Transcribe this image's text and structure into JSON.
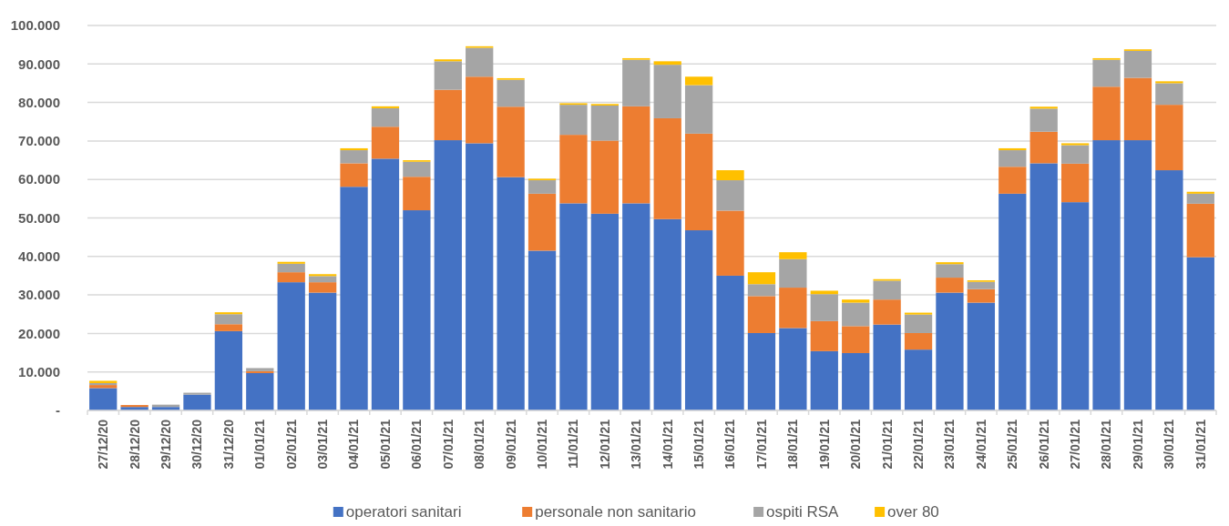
{
  "chart_data": {
    "type": "bar",
    "stacked": true,
    "categories": [
      "27/12/20",
      "28/12/20",
      "29/12/20",
      "30/12/20",
      "31/12/20",
      "01/01/21",
      "02/01/21",
      "03/01/21",
      "04/01/21",
      "05/01/21",
      "06/01/21",
      "07/01/21",
      "08/01/21",
      "09/01/21",
      "10/01/21",
      "11/01/21",
      "12/01/21",
      "13/01/21",
      "14/01/21",
      "15/01/21",
      "16/01/21",
      "17/01/21",
      "18/01/21",
      "19/01/21",
      "20/01/21",
      "21/01/21",
      "22/01/21",
      "23/01/21",
      "24/01/21",
      "25/01/21",
      "26/01/21",
      "27/01/21",
      "28/01/21",
      "29/01/21",
      "30/01/21",
      "31/01/21"
    ],
    "series": [
      {
        "name": "operatori sanitari",
        "color": "#4472c4",
        "values": [
          5800,
          900,
          900,
          4100,
          20600,
          9700,
          33300,
          30600,
          58100,
          65400,
          52000,
          70200,
          69400,
          60600,
          41500,
          53800,
          51100,
          53800,
          49700,
          46800,
          35000,
          20100,
          21400,
          15400,
          14900,
          22300,
          15800,
          30600,
          28000,
          56300,
          64200,
          54100,
          70200,
          70200,
          62400,
          39800
        ]
      },
      {
        "name": "personale non sanitario",
        "color": "#ed7d31",
        "values": [
          800,
          500,
          null,
          0,
          1800,
          500,
          2600,
          2700,
          6100,
          8300,
          8700,
          13100,
          17300,
          18300,
          14800,
          17800,
          19000,
          25200,
          26200,
          25100,
          16900,
          9600,
          10500,
          7800,
          7000,
          6500,
          4300,
          3900,
          3500,
          7000,
          8200,
          10000,
          13900,
          16200,
          17000,
          13900
        ]
      },
      {
        "name": "ospiti RSA",
        "color": "#a5a5a5",
        "values": [
          500,
          null,
          600,
          500,
          2600,
          800,
          2200,
          1600,
          3400,
          4800,
          3900,
          7400,
          7500,
          7000,
          3500,
          7800,
          9100,
          12100,
          13900,
          12600,
          7900,
          3100,
          7400,
          7000,
          6100,
          4900,
          4800,
          3500,
          1900,
          4300,
          6000,
          4800,
          7000,
          7000,
          5600,
          2600
        ]
      },
      {
        "name": "over 80",
        "color": "#ffc000",
        "values": [
          600,
          0,
          0,
          0,
          500,
          null,
          500,
          500,
          500,
          500,
          400,
          500,
          400,
          400,
          400,
          400,
          400,
          400,
          900,
          2200,
          2600,
          3100,
          1800,
          900,
          800,
          400,
          500,
          500,
          400,
          500,
          500,
          500,
          400,
          400,
          500,
          500
        ]
      }
    ],
    "ylim": [
      0,
      100000
    ],
    "yticks": [
      {
        "value": 0,
        "label": "-"
      },
      {
        "value": 10000,
        "label": "10.000"
      },
      {
        "value": 20000,
        "label": "20.000"
      },
      {
        "value": 30000,
        "label": "30.000"
      },
      {
        "value": 40000,
        "label": "40.000"
      },
      {
        "value": 50000,
        "label": "50.000"
      },
      {
        "value": 60000,
        "label": "60.000"
      },
      {
        "value": 70000,
        "label": "70.000"
      },
      {
        "value": 80000,
        "label": "80.000"
      },
      {
        "value": 90000,
        "label": "90.000"
      },
      {
        "value": 100000,
        "label": "100.000"
      }
    ],
    "grid": "y",
    "legend": "bottom"
  }
}
